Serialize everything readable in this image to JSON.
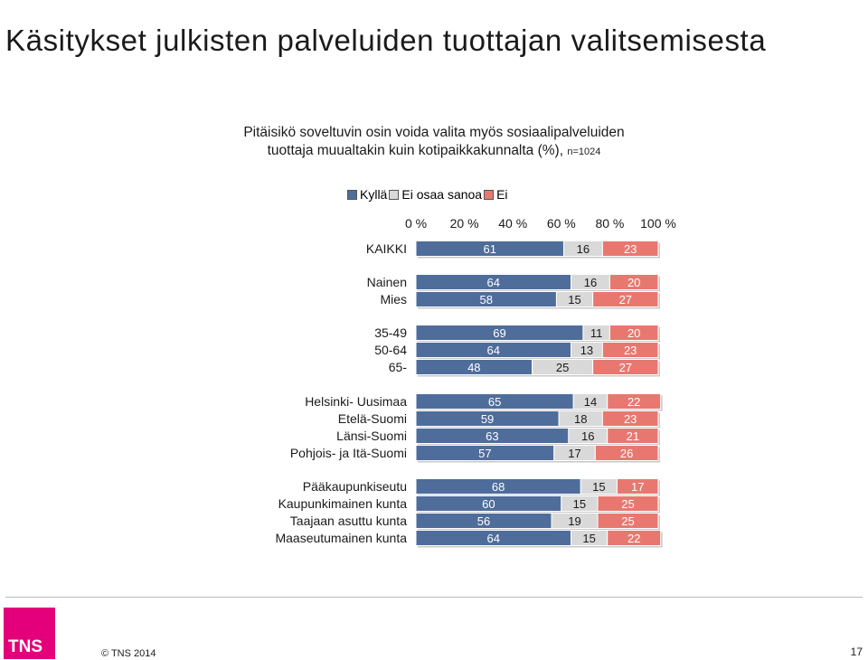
{
  "page": {
    "title": "Käsitykset julkisten palveluiden tuottajan valitsemisesta",
    "subtitle_line1": "Pitäisikö soveltuvin osin voida valita myös sosiaalipalveluiden",
    "subtitle_line2": "tuottaja muualtakin kuin kotipaikkakunnalta (%),",
    "subtitle_n": "n=1024",
    "copyright": "© TNS 2014",
    "page_number": "17",
    "logo_text": "TNS"
  },
  "chart_data": {
    "type": "bar",
    "orientation": "horizontal",
    "stacked": true,
    "xlim": [
      0,
      100
    ],
    "x_ticks": [
      "0 %",
      "20 %",
      "40 %",
      "60 %",
      "80 %",
      "100 %"
    ],
    "legend_position": "top",
    "colors": {
      "Kyllä": "#4f6d9b",
      "Ei osaa sanoa": "#d9d9d9",
      "Ei": "#e8786f"
    },
    "series": [
      {
        "name": "Kyllä",
        "values": [
          61,
          64,
          58,
          69,
          64,
          48,
          65,
          59,
          63,
          57,
          68,
          60,
          56,
          64
        ]
      },
      {
        "name": "Ei osaa sanoa",
        "values": [
          16,
          16,
          15,
          11,
          13,
          25,
          14,
          18,
          16,
          17,
          15,
          15,
          19,
          15
        ]
      },
      {
        "name": "Ei",
        "values": [
          23,
          20,
          27,
          20,
          23,
          27,
          22,
          23,
          21,
          26,
          17,
          25,
          25,
          22
        ]
      }
    ],
    "categories": [
      "KAIKKI",
      "Nainen",
      "Mies",
      "35-49",
      "50-64",
      "65-",
      "Helsinki- Uusimaa",
      "Etelä-Suomi",
      "Länsi-Suomi",
      "Pohjois- ja Itä-Suomi",
      "Pääkaupunkiseutu",
      "Kaupunkimainen kunta",
      "Taajaan asuttu kunta",
      "Maaseutumainen kunta"
    ]
  }
}
